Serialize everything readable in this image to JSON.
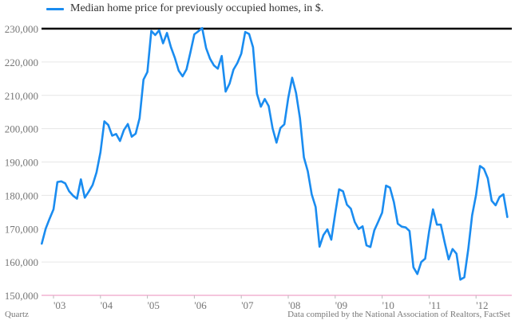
{
  "legend": {
    "label": "Median home price for previously occupied homes, in $."
  },
  "footer": {
    "brand": "Quartz",
    "source": "Data compiled by the National Association of Realtors, FactSet"
  },
  "colors": {
    "series": "#1a8cf0",
    "top_line": "#000000",
    "baseline": "#f2b4d2",
    "grid": "#e6e6e6",
    "tick_text": "#777777"
  },
  "chart_data": {
    "type": "line",
    "y_ticks": [
      "150,000",
      "160,000",
      "170,000",
      "180,000",
      "190,000",
      "200,000",
      "210,000",
      "220,000",
      "230,000"
    ],
    "x_tick_labels": [
      {
        "label": "'03",
        "month": 0
      },
      {
        "label": "'04",
        "month": 12
      },
      {
        "label": "'05",
        "month": 24
      },
      {
        "label": "'06",
        "month": 36
      },
      {
        "label": "'07",
        "month": 48
      },
      {
        "label": "'08",
        "month": 60
      },
      {
        "label": "'09",
        "month": 72
      },
      {
        "label": "'10",
        "month": 84
      },
      {
        "label": "'11",
        "month": 96
      },
      {
        "label": "'12",
        "month": 108
      }
    ],
    "ylim": [
      150000,
      230000
    ],
    "grid": true,
    "series": [
      {
        "name": "Median home price for previously occupied homes, in $.",
        "start": "2002-10",
        "values": [
          165500,
          170000,
          173000,
          175800,
          184000,
          184200,
          183600,
          181200,
          179900,
          179000,
          184800,
          179300,
          181100,
          183100,
          186900,
          192900,
          202200,
          201100,
          197900,
          198400,
          196300,
          199600,
          201400,
          197600,
          198500,
          203100,
          214700,
          217000,
          229300,
          228100,
          229500,
          225600,
          228700,
          224500,
          221300,
          217400,
          215700,
          217800,
          222900,
          228300,
          229200,
          230200,
          224200,
          221000,
          219000,
          218000,
          221800,
          211100,
          213500,
          217700,
          219700,
          222500,
          229000,
          228400,
          224400,
          210500,
          206600,
          208900,
          206800,
          200100,
          195800,
          200200,
          201300,
          209200,
          215300,
          210700,
          203100,
          191400,
          187200,
          180300,
          176500,
          164600,
          168100,
          169800,
          166700,
          174500,
          181800,
          181200,
          177200,
          176000,
          172000,
          169900,
          170700,
          165000,
          164500,
          169500,
          172100,
          174800,
          182900,
          182300,
          178000,
          171500,
          170600,
          170400,
          169300,
          158400,
          156400,
          160000,
          161000,
          169100,
          175800,
          171200,
          171200,
          165800,
          160800,
          163900,
          162500,
          154700,
          155400,
          163700,
          174000,
          180100,
          188800,
          188000,
          185100,
          178400,
          177000,
          179500,
          180300,
          173500
        ]
      }
    ]
  }
}
